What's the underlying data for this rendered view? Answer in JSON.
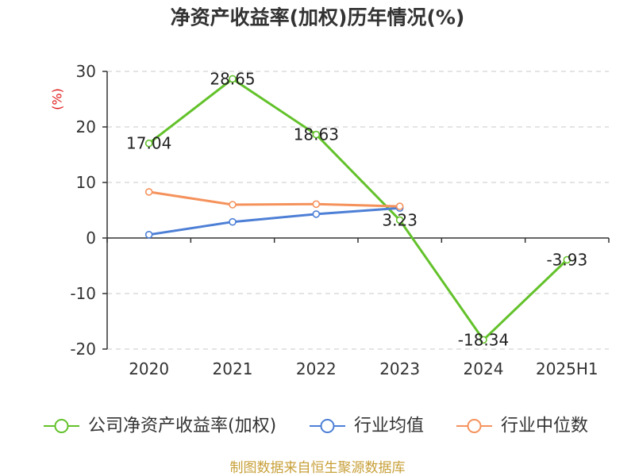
{
  "chart_data": {
    "type": "line",
    "title": "净资产收益率(加权)历年情况(%)",
    "ylabel": "(%)",
    "categories": [
      "2020",
      "2021",
      "2022",
      "2023",
      "2024",
      "2025H1"
    ],
    "ylim": [
      -20,
      30
    ],
    "yticks": [
      30,
      20,
      10,
      0,
      -10,
      -20
    ],
    "grid": true,
    "legend": "bottom",
    "series": [
      {
        "name": "公司净资产收益率(加权)",
        "color": "#63c22b",
        "labels": true,
        "values": [
          17.04,
          28.65,
          18.63,
          3.23,
          -18.34,
          -3.93
        ]
      },
      {
        "name": "行业均值",
        "color": "#4d7fd6",
        "labels": false,
        "values": [
          0.6,
          2.9,
          4.3,
          5.4,
          null,
          null
        ]
      },
      {
        "name": "行业中位数",
        "color": "#f5925c",
        "labels": false,
        "values": [
          8.3,
          6.0,
          6.1,
          5.7,
          null,
          null
        ]
      }
    ]
  },
  "footer": {
    "source": "制图数据来自恒生聚源数据库",
    "color": "#c8a03a"
  }
}
